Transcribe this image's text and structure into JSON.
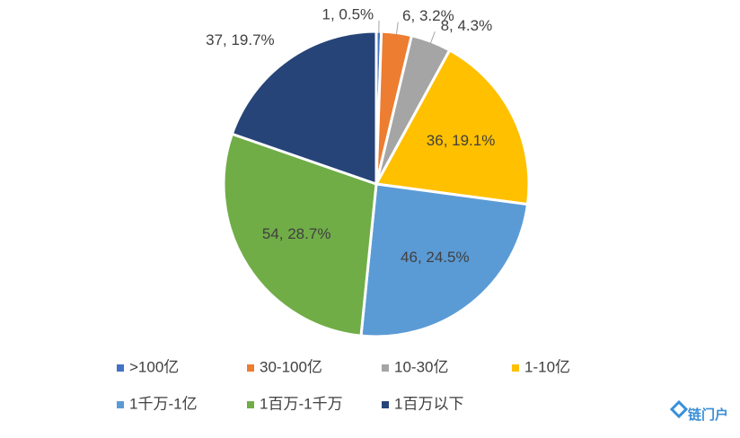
{
  "chart_data": {
    "type": "pie",
    "categories": [
      ">100亿",
      "30-100亿",
      "10-30亿",
      "1-10亿",
      "1千万-1亿",
      "1百万-1千万",
      "1百万以下"
    ],
    "values": [
      1,
      6,
      8,
      36,
      46,
      54,
      37
    ],
    "value_labels": [
      "1, 0.5%",
      "6, 3.2%",
      "8, 4.3%",
      "36, 19.1%",
      "46, 24.5%",
      "54, 28.7%",
      "37, 19.7%"
    ],
    "colors": [
      "#4472c4",
      "#ed7d31",
      "#a5a5a5",
      "#ffc000",
      "#5b9bd5",
      "#70ad47",
      "#264478"
    ],
    "legend": "bottom"
  },
  "watermark": "链门户"
}
